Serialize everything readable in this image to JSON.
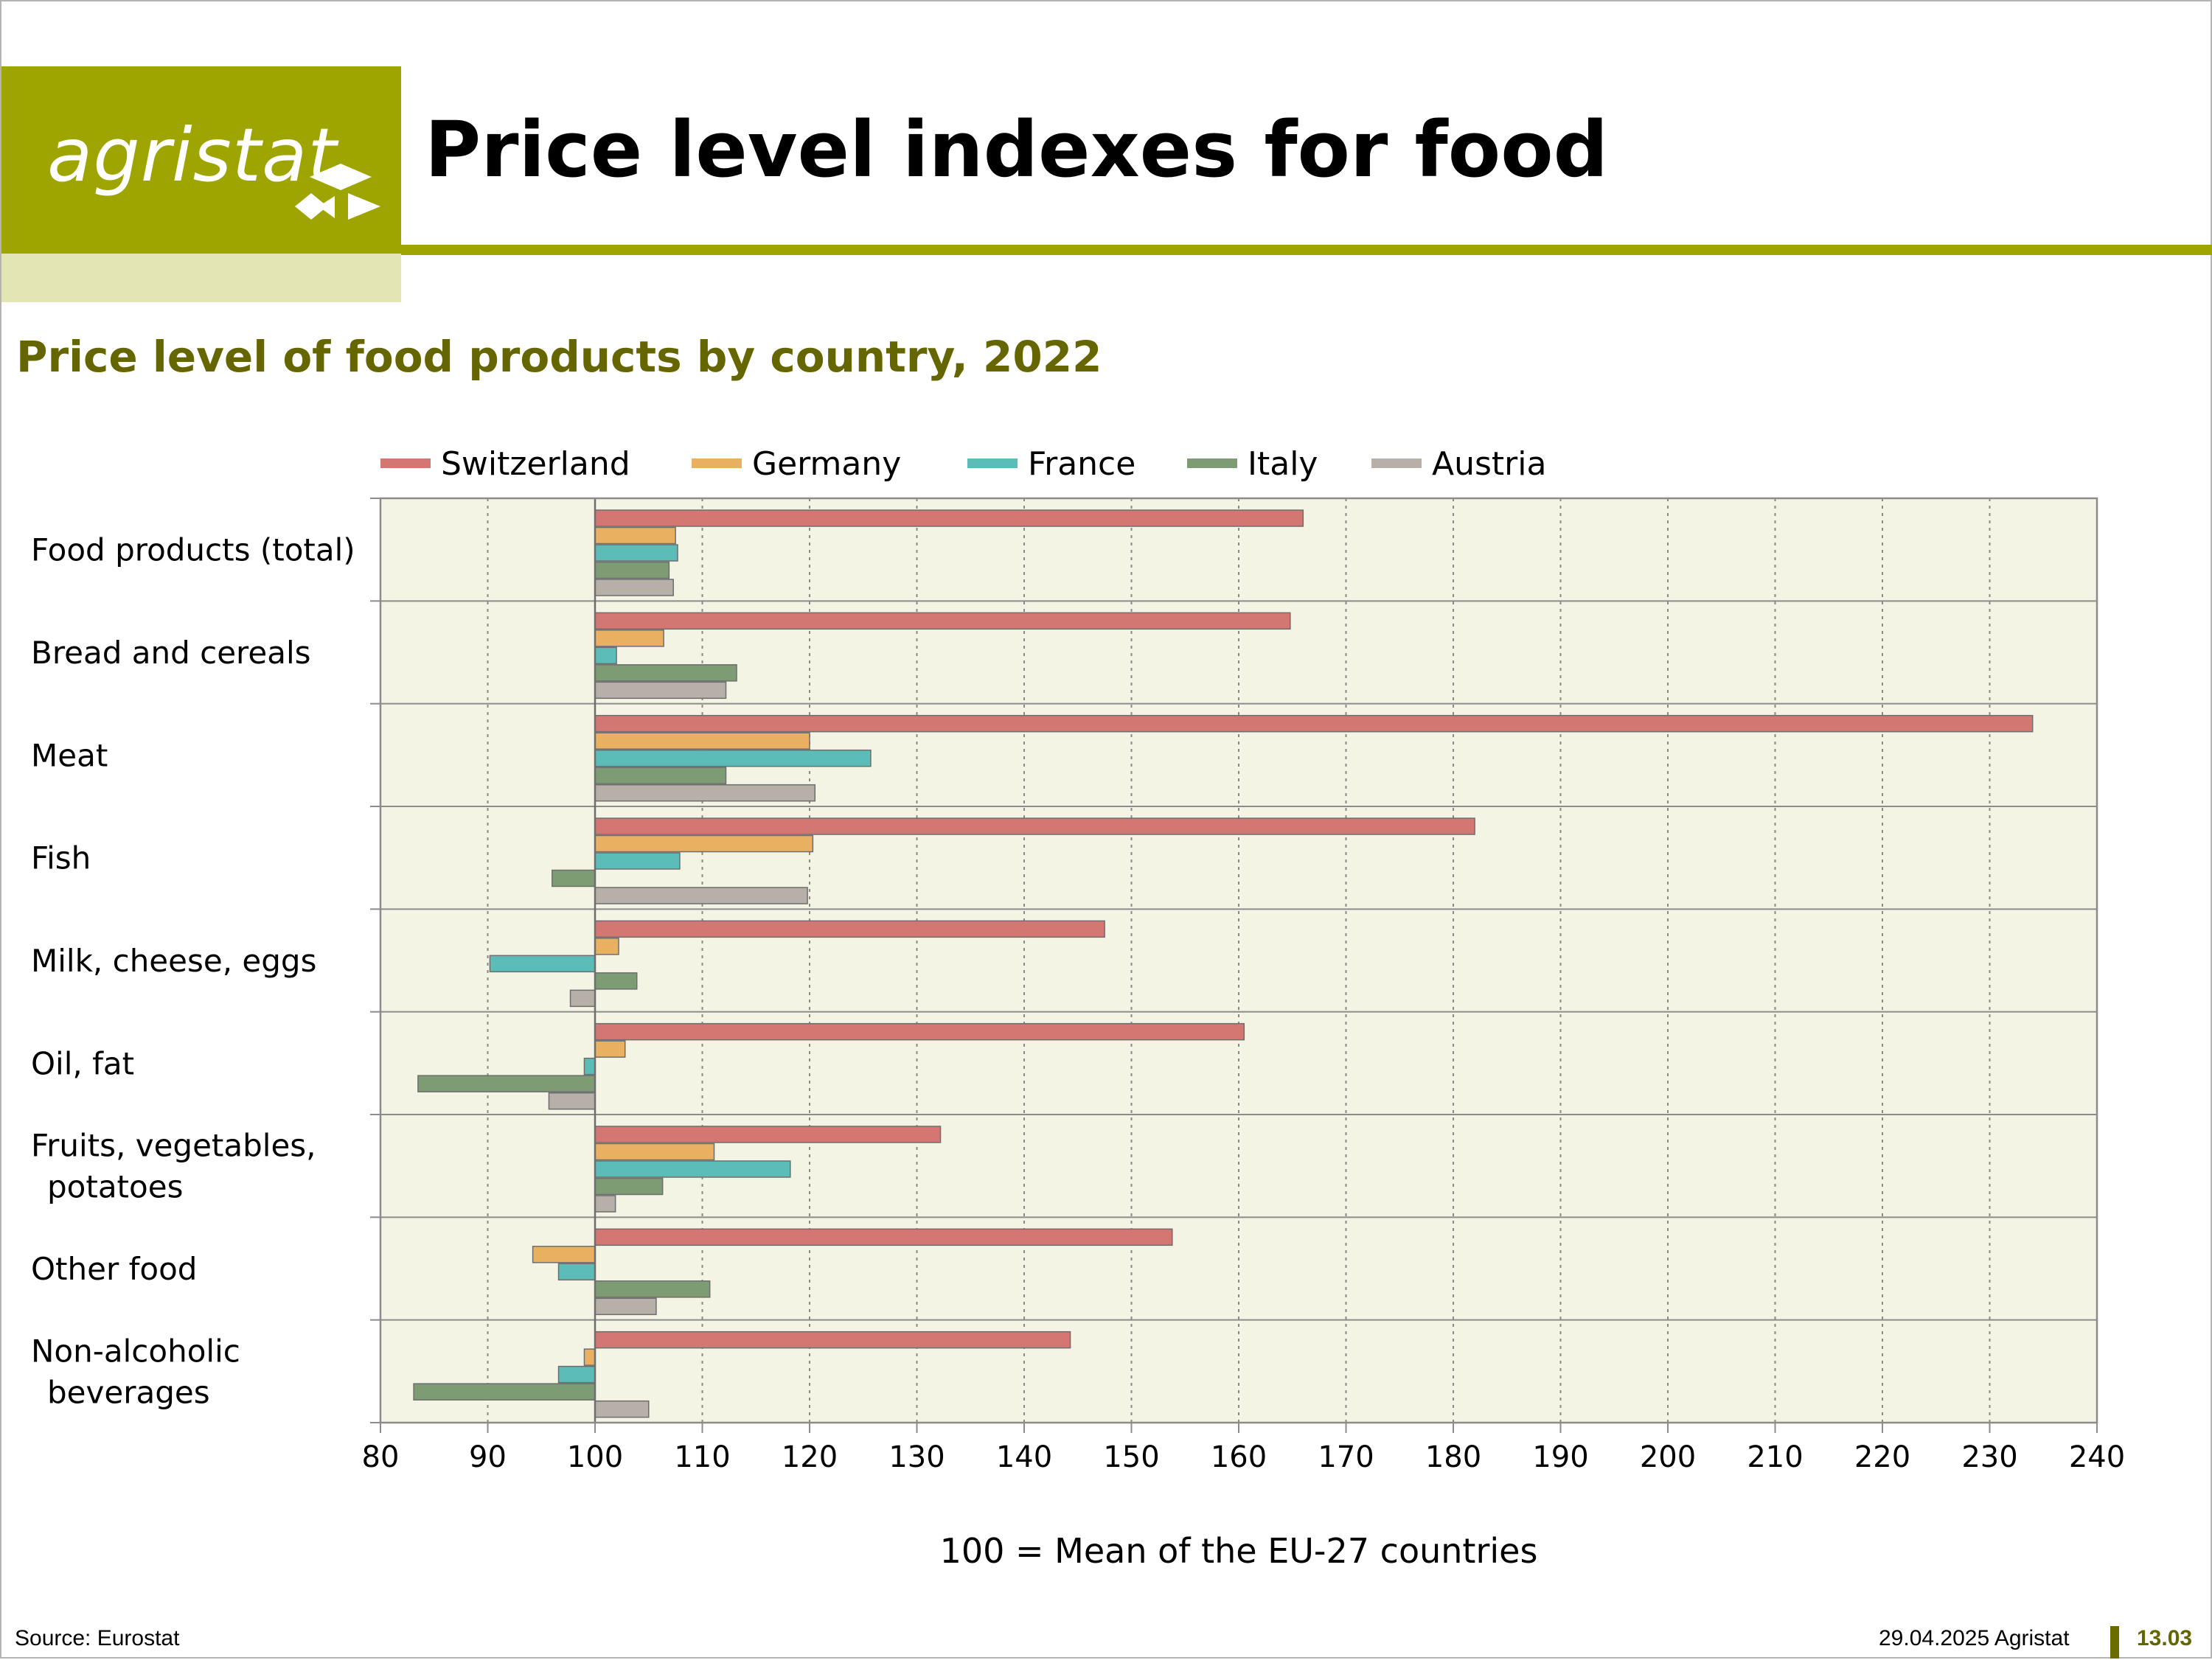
{
  "header": {
    "logo_text": "agristat",
    "title": "Price level indexes for food",
    "accent_color": "#9ea400",
    "accent_light": "#e3e6b4"
  },
  "subtitle": "Price level of food products by country, 2022",
  "footer": {
    "source": "Source: Eurostat",
    "date": "29.04.2025 Agristat",
    "page": "13.03"
  },
  "chart_data": {
    "type": "bar",
    "orientation": "horizontal",
    "baseline": 100,
    "xlim": [
      80,
      240
    ],
    "xticks": [
      80,
      90,
      100,
      110,
      120,
      130,
      140,
      150,
      160,
      170,
      180,
      190,
      200,
      210,
      220,
      230,
      240
    ],
    "xlabel": "100 = Mean of the EU-27 countries",
    "grid": true,
    "legend_position": "top",
    "categories": [
      [
        "Food products (total)"
      ],
      [
        "Bread and cereals"
      ],
      [
        "Meat"
      ],
      [
        "Fish"
      ],
      [
        "Milk, cheese, eggs"
      ],
      [
        "Oil, fat"
      ],
      [
        "Fruits, vegetables,",
        "potatoes"
      ],
      [
        "Other food"
      ],
      [
        "Non-alcoholic",
        "beverages"
      ]
    ],
    "series": [
      {
        "name": "Switzerland",
        "color": "#d47672",
        "values": [
          166.0,
          164.8,
          234.0,
          182.0,
          147.5,
          160.5,
          132.2,
          153.8,
          144.3
        ]
      },
      {
        "name": "Germany",
        "color": "#e8b060",
        "values": [
          107.5,
          106.4,
          120.0,
          120.3,
          102.2,
          102.8,
          111.1,
          94.2,
          99.0
        ]
      },
      {
        "name": "France",
        "color": "#5bbcb8",
        "values": [
          107.7,
          102.0,
          125.7,
          107.9,
          90.2,
          99.0,
          118.2,
          96.6,
          96.6
        ]
      },
      {
        "name": "Italy",
        "color": "#7e9c74",
        "values": [
          106.9,
          113.2,
          112.2,
          96.0,
          103.9,
          83.5,
          106.3,
          110.7,
          83.1
        ]
      },
      {
        "name": "Austria",
        "color": "#b6b0a9",
        "values": [
          107.3,
          112.2,
          120.5,
          119.8,
          97.7,
          95.7,
          101.9,
          105.7,
          105.0
        ]
      }
    ]
  }
}
